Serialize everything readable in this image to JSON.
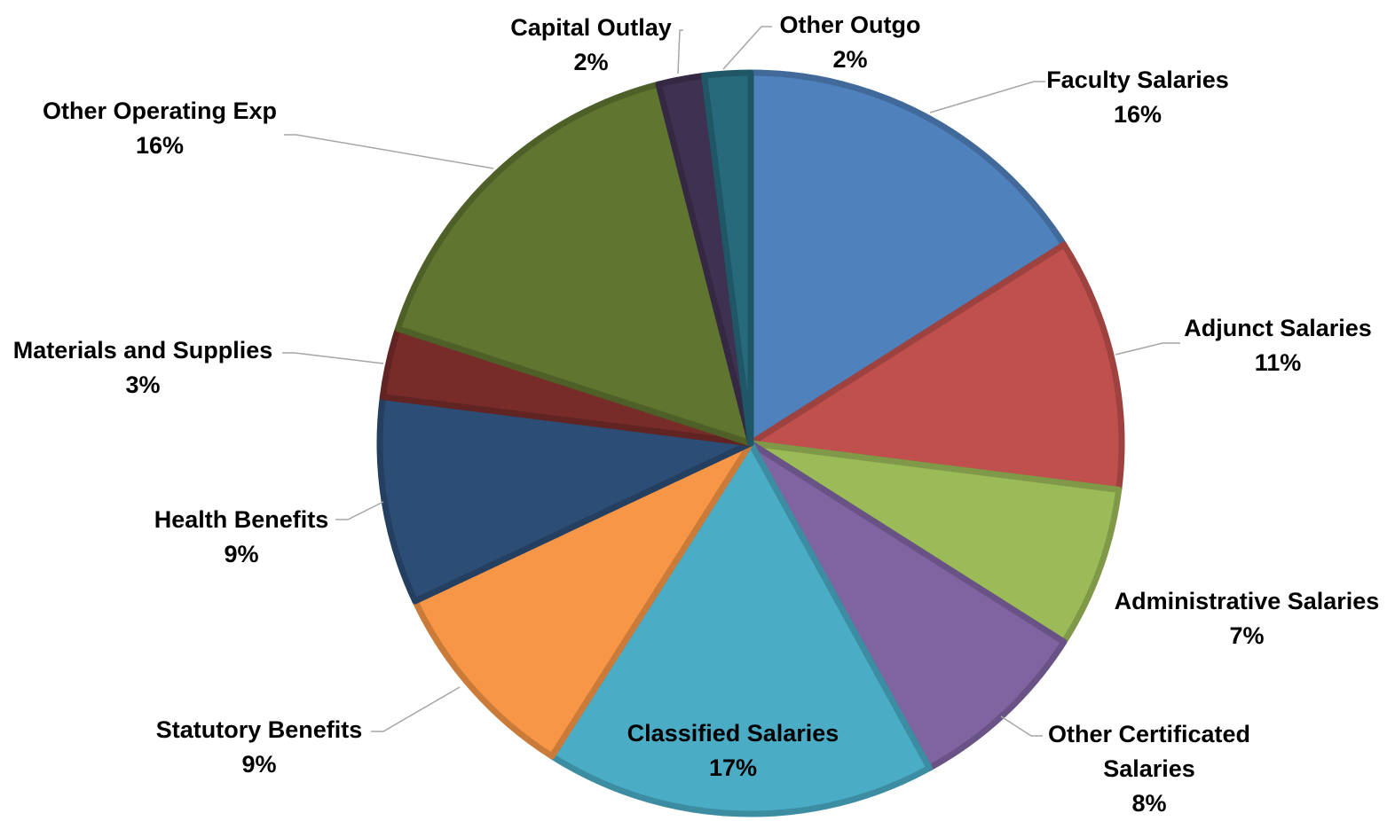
{
  "chart_data": {
    "type": "pie",
    "title": "",
    "start_angle_deg": 0,
    "direction": "clockwise",
    "slices": [
      {
        "label": "Faculty Salaries",
        "value": 16,
        "display": "16%",
        "color": "#4f81bd"
      },
      {
        "label": "Adjunct Salaries",
        "value": 11,
        "display": "11%",
        "color": "#c0504d"
      },
      {
        "label": "Administrative Salaries",
        "value": 7,
        "display": "7%",
        "color": "#9bbb59"
      },
      {
        "label": "Other Certificated Salaries",
        "value": 8,
        "display": "8%",
        "color": "#8064a2"
      },
      {
        "label": "Classified Salaries",
        "value": 17,
        "display": "17%",
        "color": "#4bacc6"
      },
      {
        "label": "Statutory Benefits",
        "value": 9,
        "display": "9%",
        "color": "#f79646"
      },
      {
        "label": "Health Benefits",
        "value": 9,
        "display": "9%",
        "color": "#2c4d75"
      },
      {
        "label": "Materials and Supplies",
        "value": 3,
        "display": "3%",
        "color": "#772c2a"
      },
      {
        "label": "Other Operating Exp",
        "value": 16,
        "display": "16%",
        "color": "#5f7530"
      },
      {
        "label": "Capital Outlay",
        "value": 2,
        "display": "2%",
        "color": "#3f3151"
      },
      {
        "label": "Other Outgo",
        "value": 2,
        "display": "2%",
        "color": "#276a7c"
      }
    ]
  }
}
